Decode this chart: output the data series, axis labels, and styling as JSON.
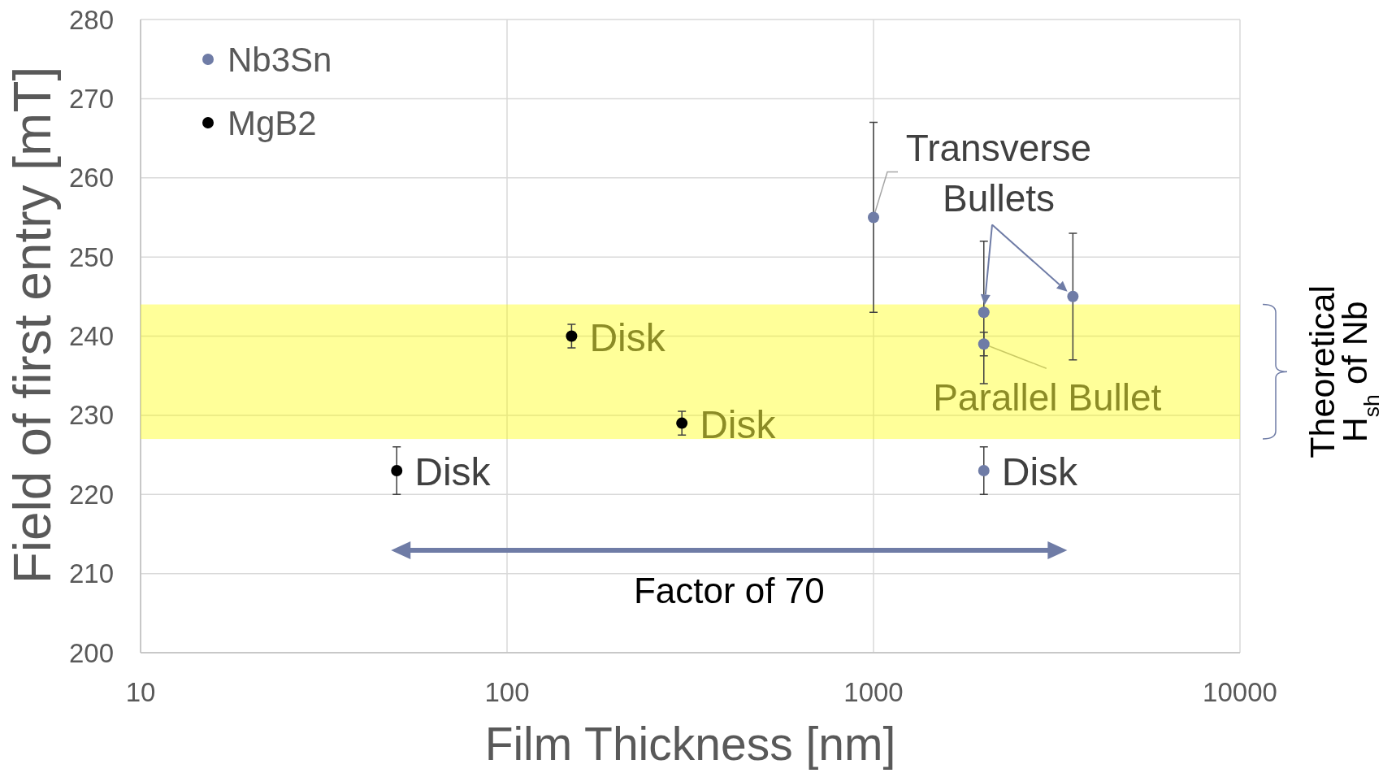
{
  "chart_data": {
    "type": "scatter",
    "xlabel": "Film Thickness [nm]",
    "ylabel": "Field of first entry [mT]",
    "series": [
      {
        "name": "Nb3Sn",
        "color": "#6f7ca6",
        "x": [
          1000,
          2000,
          2000,
          2000,
          3500
        ],
        "values": [
          255,
          243,
          239,
          223,
          245
        ],
        "errors": [
          12,
          9,
          1.5,
          3,
          8
        ]
      },
      {
        "name": "MgB2",
        "color": "#000000",
        "x": [
          50,
          150,
          300
        ],
        "values": [
          223,
          240,
          229
        ],
        "errors": [
          3,
          1.5,
          1.5
        ]
      }
    ],
    "xlim": [
      10,
      10000
    ],
    "xticks": [
      10,
      100,
      1000,
      10000
    ],
    "ylim": [
      200,
      280
    ],
    "yticks": [
      200,
      210,
      220,
      230,
      240,
      250,
      260,
      270,
      280
    ],
    "log": "x",
    "grid": true,
    "legend": "top left",
    "marker": "circle",
    "bands": [
      {
        "axis": "y",
        "from": 227,
        "to": 244,
        "label": "Theoretical\nH$_{sh}$ of Nb",
        "color": "#ffff00"
      }
    ],
    "annotations": [
      {
        "text": "Transverse\nBullets",
        "x": 1000,
        "y": 255
      },
      {
        "text": "Parallel Bullet",
        "x": 2000,
        "y": 239
      },
      {
        "text": "Disk",
        "x": 50,
        "y": 223
      },
      {
        "text": "Disk",
        "x": 150,
        "y": 240
      },
      {
        "text": "Disk",
        "x": 300,
        "y": 229
      },
      {
        "text": "Disk",
        "x": 2000,
        "y": 223
      },
      "Factor of 70"
    ]
  }
}
